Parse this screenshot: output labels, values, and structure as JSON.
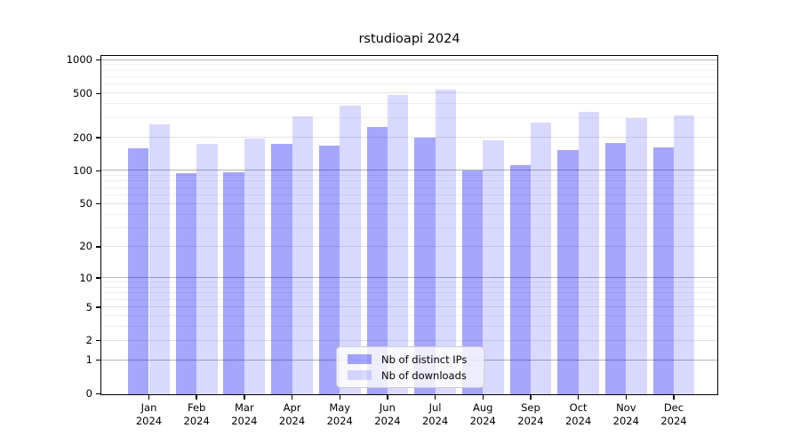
{
  "title": "rstudioapi 2024",
  "legend": {
    "items": [
      {
        "label": "Nb of distinct IPs",
        "color_key": "ips"
      },
      {
        "label": "Nb of downloads",
        "color_key": "downloads"
      }
    ]
  },
  "colors": {
    "ips": "rgba(0,0,255,0.35)",
    "downloads": "rgba(0,0,255,0.15)",
    "ips_solid": "#a6a6fa",
    "downloads_solid": "#d9d9fb",
    "major_grid": "#b3b3b3",
    "labeled_minor_grid": "#e3e3e3",
    "minor_grid": "#efefef",
    "axis": "#000000"
  },
  "axis": {
    "year": "2024",
    "months": [
      "Jan",
      "Feb",
      "Mar",
      "Apr",
      "May",
      "Jun",
      "Jul",
      "Aug",
      "Sep",
      "Oct",
      "Nov",
      "Dec"
    ],
    "y_ticks": [
      {
        "label": "1000",
        "value": 1000
      },
      {
        "label": "500",
        "value": 500
      },
      {
        "label": "200",
        "value": 200
      },
      {
        "label": "100",
        "value": 100
      },
      {
        "label": "50",
        "value": 50
      },
      {
        "label": "20",
        "value": 20
      },
      {
        "label": "10",
        "value": 10
      },
      {
        "label": "5",
        "value": 5
      },
      {
        "label": "2",
        "value": 2
      },
      {
        "label": "1",
        "value": 1
      },
      {
        "label": "0",
        "value": 0
      }
    ]
  },
  "chart_data": {
    "type": "bar",
    "title": "rstudioapi 2024",
    "categories": [
      "Jan 2024",
      "Feb 2024",
      "Mar 2024",
      "Apr 2024",
      "May 2024",
      "Jun 2024",
      "Jul 2024",
      "Aug 2024",
      "Sep 2024",
      "Oct 2024",
      "Nov 2024",
      "Dec 2024"
    ],
    "series": [
      {
        "name": "Nb of distinct IPs",
        "values": [
          160,
          95,
          97,
          175,
          168,
          250,
          201,
          100,
          112,
          154,
          179,
          163
        ]
      },
      {
        "name": "Nb of downloads",
        "values": [
          262,
          176,
          198,
          312,
          386,
          484,
          540,
          190,
          276,
          343,
          302,
          317
        ]
      }
    ],
    "xlabel": "",
    "ylabel": "",
    "yscale": "log10(1+y)",
    "ylim": [
      0,
      1100
    ],
    "y_tick_values": [
      1000,
      500,
      200,
      100,
      50,
      20,
      10,
      5,
      2,
      1,
      0
    ],
    "grid": "horizontal, minor and major",
    "legend_position": "inside bottom-center"
  }
}
